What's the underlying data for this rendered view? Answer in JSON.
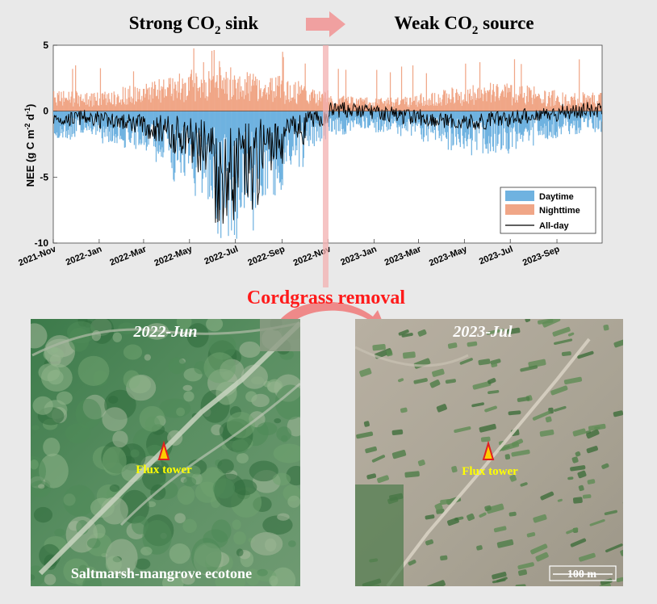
{
  "header": {
    "left_title": {
      "pre": "Strong CO",
      "sub": "2",
      "post": " sink"
    },
    "right_title": {
      "pre": "Weak CO",
      "sub": "2",
      "post": " source"
    }
  },
  "middle_label": "Cordgrass removal",
  "colors": {
    "daytime": "#6fb2e0",
    "nighttime": "#f0a687",
    "allday": "#000000",
    "arrow": "#f0a0a0",
    "title_red": "#ff1a1a",
    "photo_label": "#ffff00"
  },
  "chart_data": {
    "type": "bar",
    "ylabel": "NEE (g C m-2 d-1)",
    "ylabel_parts": [
      "NEE (g C m",
      "-2",
      " d",
      "-1",
      ")"
    ],
    "ylim": [
      -10,
      5
    ],
    "yticks": [
      5,
      0,
      -5,
      -10
    ],
    "xlim": [
      "2021-11-01",
      "2023-10-31"
    ],
    "xticks": [
      "2021-Nov",
      "2022-Jan",
      "2022-Mar",
      "2022-May",
      "2022-Jul",
      "2022-Sep",
      "2022-Nov",
      "2023-Jan",
      "2023-Mar",
      "2023-May",
      "2023-Jul",
      "2023-Sep"
    ],
    "legend_position": "bottom-right",
    "series": [
      {
        "name": "Daytime",
        "kind": "bar",
        "monthly_mean": [
          -1.2,
          -1.0,
          -1.4,
          -1.6,
          -2.2,
          -3.0,
          -3.8,
          -5.6,
          -5.2,
          -3.6,
          -2.5,
          -1.5,
          -1.0,
          -0.8,
          -0.9,
          -1.1,
          -1.3,
          -1.7,
          -1.9,
          -1.8,
          -1.6,
          -1.2,
          -1.0,
          -0.9
        ]
      },
      {
        "name": "Nighttime",
        "kind": "bar",
        "monthly_mean": [
          0.9,
          0.8,
          0.9,
          1.1,
          1.4,
          1.6,
          1.8,
          1.9,
          1.7,
          1.5,
          1.3,
          1.0,
          0.7,
          0.6,
          0.6,
          0.7,
          0.8,
          1.0,
          1.1,
          1.2,
          1.1,
          0.9,
          0.8,
          0.8
        ]
      },
      {
        "name": "All-day",
        "kind": "line",
        "monthly_mean": [
          -0.6,
          -0.5,
          -0.7,
          -0.9,
          -1.3,
          -1.8,
          -2.6,
          -4.8,
          -4.2,
          -2.5,
          -1.4,
          -0.6,
          0.1,
          0.0,
          -0.2,
          -0.4,
          -0.6,
          -0.8,
          -0.9,
          -0.6,
          -0.4,
          -0.2,
          0.0,
          0.1
        ]
      }
    ],
    "peak_values": {
      "daytime_min": -9.6,
      "nighttime_max": 4.9
    }
  },
  "photos": [
    {
      "title": "2022-Jun",
      "marker_label": "Flux tower",
      "caption": "Saltmarsh-mangrove  ecotone"
    },
    {
      "title": "2023-Jul",
      "marker_label": "Flux tower",
      "scalebar_label": "100 m"
    }
  ]
}
